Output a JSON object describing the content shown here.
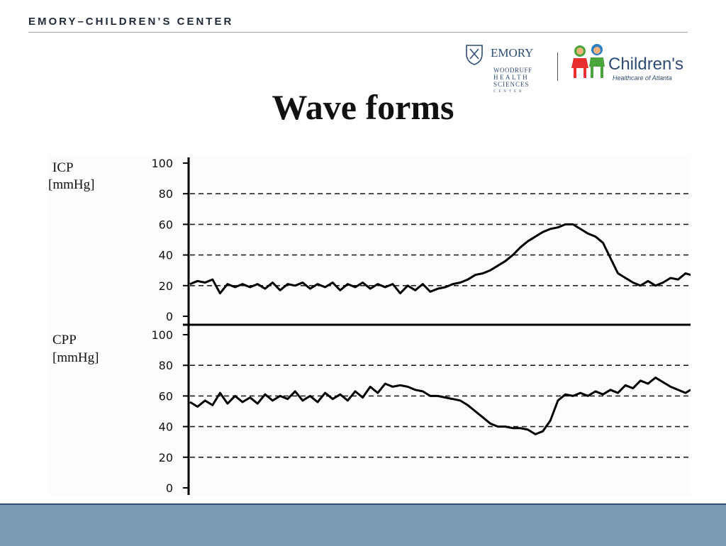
{
  "header": {
    "org_name": "EMORY–CHILDREN’S CENTER"
  },
  "logos": {
    "emory": {
      "icon": "emory-shield-icon",
      "name": "EMORY",
      "lines": [
        "WOODRUFF",
        "HEALTH",
        "SCIENCES",
        "CENTER"
      ]
    },
    "childrens": {
      "icon": "childrens-kids-icon",
      "name": "Children's",
      "tagline": "Healthcare of Atlanta"
    }
  },
  "slide": {
    "title": "Wave forms"
  },
  "colors": {
    "footer_band": "#7c9cb6",
    "footer_border": "#2d4d75",
    "trace": "#000000"
  },
  "chart_data": [
    {
      "type": "line",
      "name": "icp",
      "ylabel": [
        "ICP",
        "[mmHg]"
      ],
      "ylim": [
        0,
        100
      ],
      "yticks": [
        0,
        20,
        40,
        60,
        80,
        100
      ],
      "gridlines": [
        20,
        40,
        60,
        80
      ],
      "grid_style": "dashed",
      "x": [
        0,
        1.5,
        3,
        4.5,
        6,
        7.5,
        9,
        10.5,
        12,
        13.5,
        15,
        16.5,
        18,
        19.5,
        21,
        22.5,
        24,
        25.5,
        27,
        28.5,
        30,
        31.5,
        33,
        34.5,
        36,
        37.5,
        39,
        40.5,
        42,
        43.5,
        45,
        46.5,
        48,
        49.5,
        51,
        52.5,
        54,
        55.5,
        57,
        58.5,
        60,
        61.5,
        63,
        64.5,
        66,
        67.5,
        69,
        70.5,
        72,
        73.5,
        75,
        76.5,
        78,
        79.5,
        81,
        82.5,
        84,
        85.5,
        87,
        88.5,
        90,
        91.5,
        93,
        94.5,
        96,
        97.5,
        99,
        100
      ],
      "y": [
        21,
        23,
        22,
        24,
        15,
        21,
        19,
        21,
        19,
        21,
        18,
        22,
        17,
        21,
        20,
        22,
        18,
        21,
        19,
        22,
        17,
        21,
        19,
        22,
        18,
        21,
        19,
        21,
        15,
        20,
        17,
        21,
        16,
        18,
        19,
        21,
        22,
        24,
        27,
        28,
        30,
        33,
        36,
        40,
        45,
        49,
        52,
        55,
        57,
        58,
        60,
        60,
        57,
        54,
        52,
        48,
        38,
        28,
        25,
        22,
        20,
        23,
        20,
        22,
        25,
        24,
        28,
        27
      ],
      "x_end": 100
    },
    {
      "type": "line",
      "name": "cpp",
      "ylabel": [
        "CPP",
        "[mmHg]"
      ],
      "ylim": [
        0,
        100
      ],
      "yticks": [
        0,
        20,
        40,
        60,
        80,
        100
      ],
      "gridlines": [
        20,
        40,
        60,
        80
      ],
      "grid_style": "dashed",
      "x": [
        0,
        1.5,
        3,
        4.5,
        6,
        7.5,
        9,
        10.5,
        12,
        13.5,
        15,
        16.5,
        18,
        19.5,
        21,
        22.5,
        24,
        25.5,
        27,
        28.5,
        30,
        31.5,
        33,
        34.5,
        36,
        37.5,
        39,
        40.5,
        42,
        43.5,
        45,
        46.5,
        48,
        49.5,
        51,
        52.5,
        54,
        55.5,
        57,
        58.5,
        60,
        61.5,
        63,
        64.5,
        66,
        67.5,
        69,
        70.5,
        72,
        73.5,
        75,
        76.5,
        78,
        79.5,
        81,
        82.5,
        84,
        85.5,
        87,
        88.5,
        90,
        91.5,
        93,
        94.5,
        96,
        97.5,
        99,
        100
      ],
      "y": [
        56,
        53,
        57,
        54,
        62,
        55,
        60,
        56,
        59,
        55,
        61,
        57,
        60,
        58,
        63,
        57,
        60,
        56,
        62,
        58,
        61,
        57,
        63,
        59,
        66,
        62,
        68,
        66,
        67,
        66,
        64,
        63,
        60,
        60,
        59,
        58,
        57,
        54,
        50,
        46,
        42,
        40,
        40,
        39,
        39,
        38,
        35,
        37,
        44,
        57,
        61,
        60,
        62,
        60,
        63,
        61,
        64,
        62,
        67,
        65,
        70,
        68,
        72,
        69,
        66,
        64,
        62,
        64
      ],
      "x_end": 100
    }
  ]
}
